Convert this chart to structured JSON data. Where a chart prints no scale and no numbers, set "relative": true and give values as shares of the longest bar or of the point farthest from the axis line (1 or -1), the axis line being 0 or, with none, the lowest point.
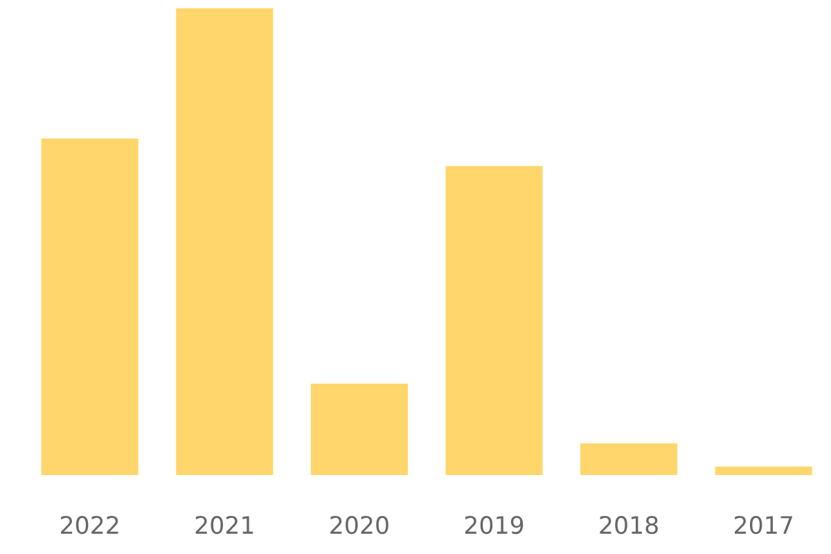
{
  "chart_data": {
    "type": "bar",
    "relative": true,
    "categories": [
      "2022",
      "2021",
      "2020",
      "2019",
      "2018",
      "2017"
    ],
    "values": [
      0.721,
      1,
      0.196,
      0.662,
      0.068,
      0.018
    ],
    "color": "#ffd66b",
    "grid": false,
    "legend": false
  }
}
